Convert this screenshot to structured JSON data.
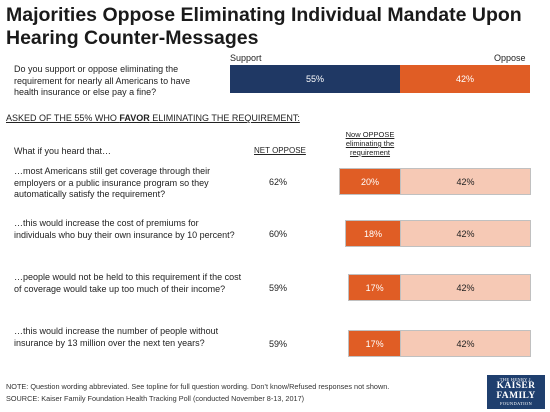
{
  "title": "Majorities Oppose Eliminating Individual Mandate Upon Hearing Counter-Messages",
  "colors": {
    "support": "#1f3864",
    "oppose": "#e05d25",
    "light_oppose": "#f6c9b5",
    "text_light": "#ffffff",
    "text_dark": "#222222"
  },
  "top_question": {
    "text": "Do you support or oppose eliminating the requirement for nearly all Americans to have health insurance or else pay a fine?",
    "support_label": "Support",
    "oppose_label": "Oppose",
    "support_value": "55%",
    "oppose_value": "42%"
  },
  "subgroup_heading_pre": "ASKED OF THE 55% WHO ",
  "subgroup_heading_bold": "FAVOR",
  "subgroup_heading_post": " ELIMINATING THE REQUIREMENT:",
  "what_if_label": "What if you heard that…",
  "net_oppose_header": "NET OPPOSE",
  "now_oppose_header": "Now OPPOSE eliminating the requirement",
  "chart_data": {
    "type": "bar",
    "orientation": "horizontal",
    "stacked": true,
    "title": "Majorities Oppose Eliminating Individual Mandate Upon Hearing Counter-Messages",
    "top_bar": {
      "categories": [
        "Do you support or oppose eliminating the requirement for nearly all Americans to have health insurance or else pay a fine?"
      ],
      "series": [
        {
          "name": "Support",
          "values": [
            55
          ],
          "color": "#1f3864"
        },
        {
          "name": "Oppose",
          "values": [
            42
          ],
          "color": "#e05d25"
        }
      ]
    },
    "categories": [
      "…most Americans still get coverage through their employers or a public insurance program so they automatically satisfy the requirement?",
      "…this would increase the cost of premiums for individuals who buy their own insurance by 10 percent?",
      "…people would not be held to this requirement if the cost of coverage would take up too much of their income?",
      "…this would increase the number of people without insurance by 13 million over the next ten years?"
    ],
    "net_oppose": [
      "62%",
      "60%",
      "59%",
      "59%"
    ],
    "series": [
      {
        "name": "Now OPPOSE eliminating the requirement",
        "values": [
          20,
          18,
          17,
          17
        ],
        "color": "#e05d25"
      },
      {
        "values": [
          42,
          42,
          42,
          42
        ],
        "color": "#f6c9b5"
      }
    ]
  },
  "note": "NOTE: Question wording abbreviated. See topline for full question wording. Don’t know/Refused responses not shown.",
  "source": "SOURCE: Kaiser Family Foundation Health Tracking Poll (conducted November 8-13, 2017)",
  "logo": {
    "line1": "THE HENRY J.",
    "line2": "KAISER",
    "line3": "FAMILY",
    "line4": "FOUNDATION"
  }
}
